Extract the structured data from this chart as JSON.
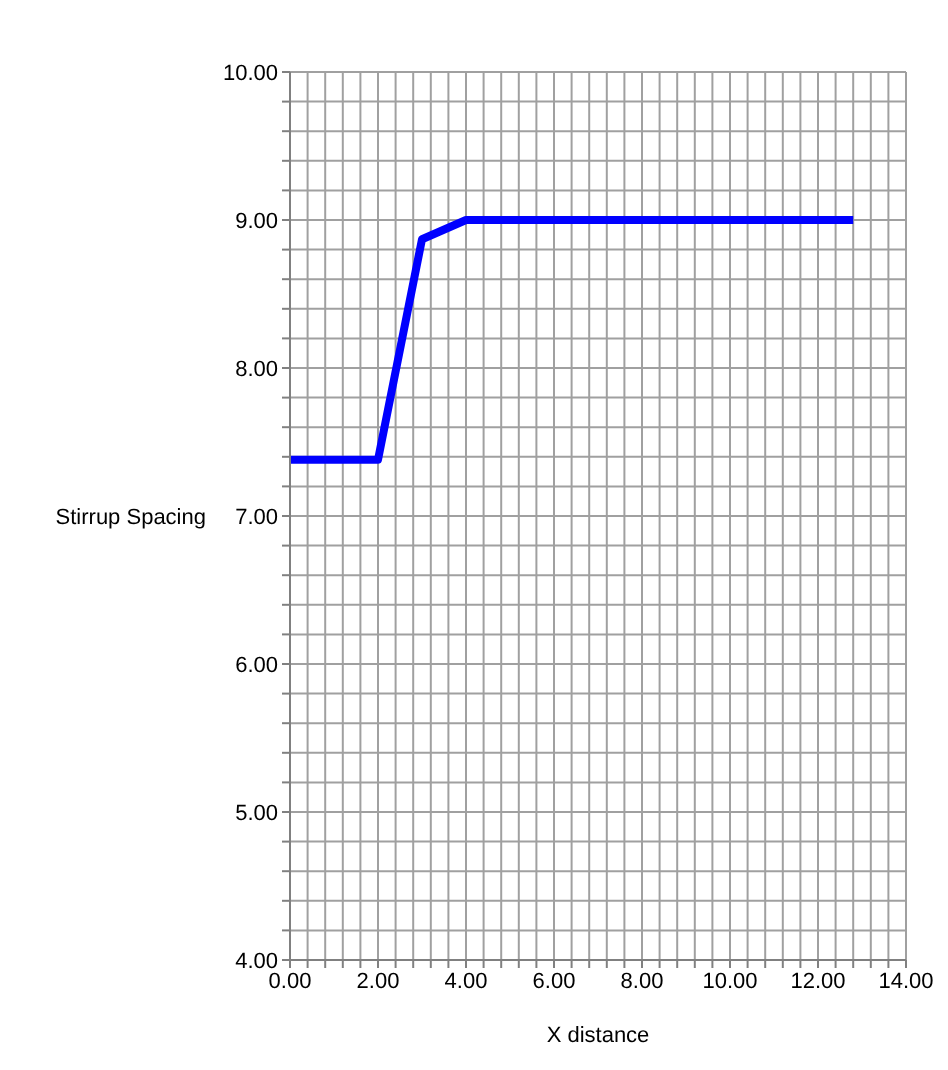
{
  "chart_data": {
    "type": "line",
    "xlabel": "X distance",
    "ylabel": "Stirrup Spacing",
    "x": [
      0,
      2,
      3,
      4,
      12.8
    ],
    "series": [
      {
        "color": "#0000ff",
        "values": [
          7.38,
          7.38,
          8.87,
          9.0,
          9.0
        ]
      }
    ],
    "xlim": [
      0,
      14
    ],
    "xticks": [
      {
        "value": 0,
        "label": "0.00"
      },
      {
        "value": 0.4,
        "label": null
      },
      {
        "value": 0.8,
        "label": null
      },
      {
        "value": 1.2,
        "label": null
      },
      {
        "value": 1.6,
        "label": null
      },
      {
        "value": 2,
        "label": "2.00"
      },
      {
        "value": 2.4,
        "label": null
      },
      {
        "value": 2.8,
        "label": null
      },
      {
        "value": 3.2,
        "label": null
      },
      {
        "value": 3.6,
        "label": null
      },
      {
        "value": 4,
        "label": "4.00"
      },
      {
        "value": 4.4,
        "label": null
      },
      {
        "value": 4.8,
        "label": null
      },
      {
        "value": 5.2,
        "label": null
      },
      {
        "value": 5.6,
        "label": null
      },
      {
        "value": 6,
        "label": "6.00"
      },
      {
        "value": 6.4,
        "label": null
      },
      {
        "value": 6.8,
        "label": null
      },
      {
        "value": 7.2,
        "label": null
      },
      {
        "value": 7.6,
        "label": null
      },
      {
        "value": 8,
        "label": "8.00"
      },
      {
        "value": 8.4,
        "label": null
      },
      {
        "value": 8.8,
        "label": null
      },
      {
        "value": 9.2,
        "label": null
      },
      {
        "value": 9.6,
        "label": null
      },
      {
        "value": 10,
        "label": "10.00"
      },
      {
        "value": 10.4,
        "label": null
      },
      {
        "value": 10.8,
        "label": null
      },
      {
        "value": 11.2,
        "label": null
      },
      {
        "value": 11.6,
        "label": null
      },
      {
        "value": 12,
        "label": "12.00"
      },
      {
        "value": 12.4,
        "label": null
      },
      {
        "value": 12.8,
        "label": null
      },
      {
        "value": 13.2,
        "label": null
      },
      {
        "value": 13.6,
        "label": null
      },
      {
        "value": 14,
        "label": "14.00"
      }
    ],
    "ylim": [
      4,
      10
    ],
    "yticks": [
      {
        "value": 4,
        "label": "4.00"
      },
      {
        "value": 4.2,
        "label": null
      },
      {
        "value": 4.4,
        "label": null
      },
      {
        "value": 4.6,
        "label": null
      },
      {
        "value": 4.8,
        "label": null
      },
      {
        "value": 5,
        "label": "5.00"
      },
      {
        "value": 5.2,
        "label": null
      },
      {
        "value": 5.4,
        "label": null
      },
      {
        "value": 5.6,
        "label": null
      },
      {
        "value": 5.8,
        "label": null
      },
      {
        "value": 6,
        "label": "6.00"
      },
      {
        "value": 6.2,
        "label": null
      },
      {
        "value": 6.4,
        "label": null
      },
      {
        "value": 6.6,
        "label": null
      },
      {
        "value": 6.8,
        "label": null
      },
      {
        "value": 7,
        "label": "7.00"
      },
      {
        "value": 7.2,
        "label": null
      },
      {
        "value": 7.4,
        "label": null
      },
      {
        "value": 7.6,
        "label": null
      },
      {
        "value": 7.8,
        "label": null
      },
      {
        "value": 8,
        "label": "8.00"
      },
      {
        "value": 8.2,
        "label": null
      },
      {
        "value": 8.4,
        "label": null
      },
      {
        "value": 8.6,
        "label": null
      },
      {
        "value": 8.8,
        "label": null
      },
      {
        "value": 9,
        "label": "9.00"
      },
      {
        "value": 9.2,
        "label": null
      },
      {
        "value": 9.4,
        "label": null
      },
      {
        "value": 9.6,
        "label": null
      },
      {
        "value": 9.8,
        "label": null
      },
      {
        "value": 10,
        "label": "10.00"
      }
    ],
    "grid": true,
    "marker": "none",
    "line_style": "solid"
  }
}
